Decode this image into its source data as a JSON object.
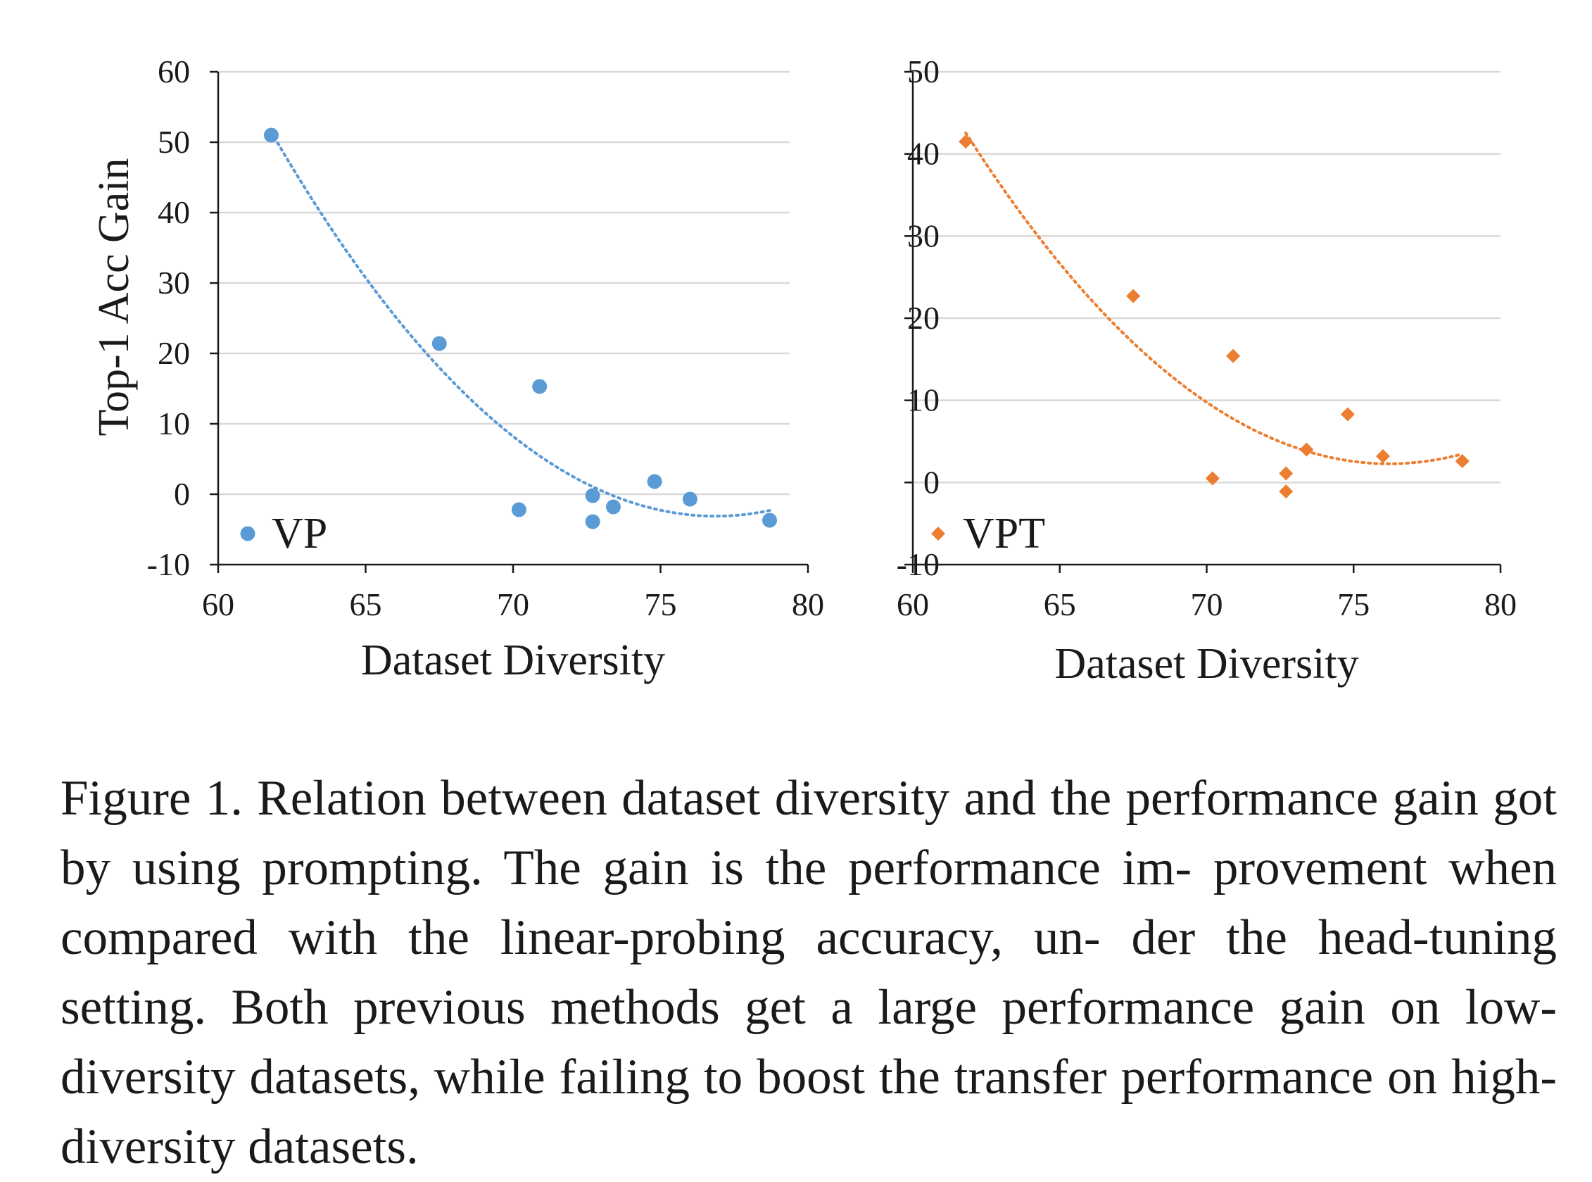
{
  "chart_data": [
    {
      "type": "scatter",
      "xlabel": "Dataset Diversity",
      "ylabel": "Top-1 Acc Gain",
      "xlim": [
        60,
        80
      ],
      "ylim": [
        -10,
        60
      ],
      "xticks": [
        60,
        65,
        70,
        75,
        80
      ],
      "yticks": [
        -10,
        0,
        10,
        20,
        30,
        40,
        50,
        60
      ],
      "grid": "horizontal",
      "legend_position": "bottom-left",
      "trendline": "polynomial",
      "series": [
        {
          "name": "VP",
          "marker": "circle",
          "color": "#5b9bd5",
          "points": [
            {
              "x": 61.8,
              "y": 51.0
            },
            {
              "x": 67.5,
              "y": 21.4
            },
            {
              "x": 70.2,
              "y": -2.2
            },
            {
              "x": 70.9,
              "y": 15.3
            },
            {
              "x": 72.7,
              "y": -0.2
            },
            {
              "x": 72.7,
              "y": -3.9
            },
            {
              "x": 73.4,
              "y": -1.8
            },
            {
              "x": 74.8,
              "y": 1.8
            },
            {
              "x": 76.0,
              "y": -0.7
            },
            {
              "x": 78.7,
              "y": -3.7
            }
          ]
        }
      ]
    },
    {
      "type": "scatter",
      "xlabel": "Dataset Diversity",
      "ylabel": "",
      "xlim": [
        60,
        80
      ],
      "ylim": [
        -10,
        50
      ],
      "xticks": [
        60,
        65,
        70,
        75,
        80
      ],
      "yticks": [
        -10,
        0,
        10,
        20,
        30,
        40,
        50
      ],
      "grid": "horizontal",
      "legend_position": "bottom-left",
      "trendline": "polynomial",
      "series": [
        {
          "name": "VPT",
          "marker": "diamond",
          "color": "#ed7d31",
          "points": [
            {
              "x": 61.8,
              "y": 41.5
            },
            {
              "x": 67.5,
              "y": 22.7
            },
            {
              "x": 70.2,
              "y": 0.5
            },
            {
              "x": 70.9,
              "y": 15.4
            },
            {
              "x": 72.7,
              "y": 1.1
            },
            {
              "x": 72.7,
              "y": -1.1
            },
            {
              "x": 73.4,
              "y": 4.0
            },
            {
              "x": 74.8,
              "y": 8.3
            },
            {
              "x": 76.0,
              "y": 3.2
            },
            {
              "x": 78.7,
              "y": 2.6
            }
          ]
        }
      ]
    }
  ],
  "caption": {
    "lines": [
      "Figure 1. Relation between dataset diversity and the performance",
      "gain got by using prompting.  The gain is the performance im-",
      "provement when compared with the linear-probing accuracy, un-",
      "der the head-tuning setting.  Both previous methods get a large",
      "performance gain on low-diversity datasets, while failing to boost",
      "the transfer performance on high-diversity datasets."
    ]
  }
}
